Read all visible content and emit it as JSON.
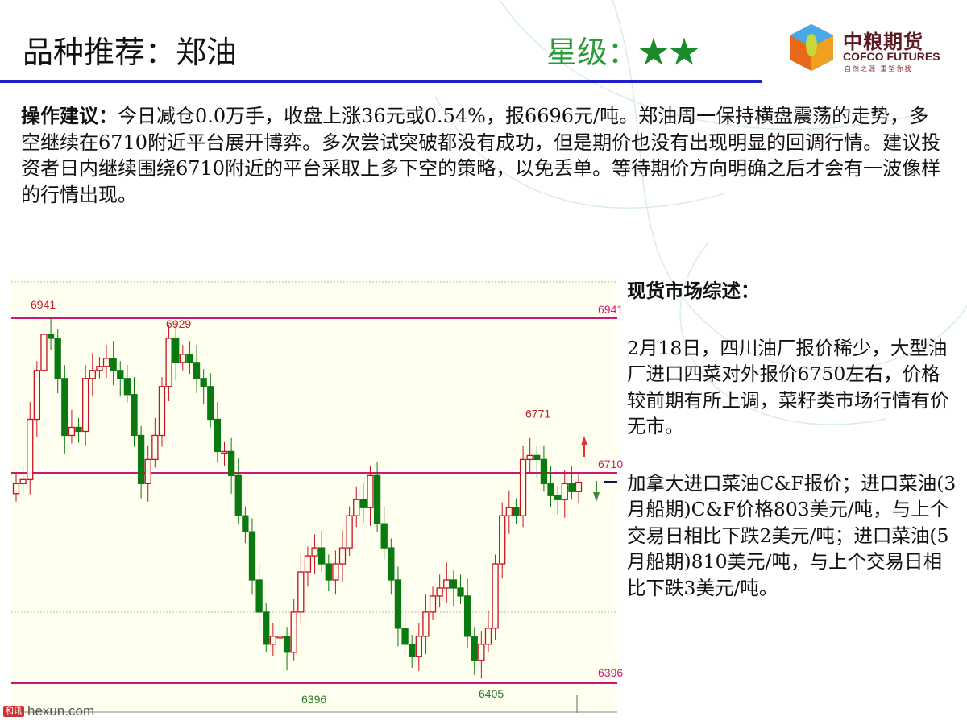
{
  "header": {
    "title": "品种推荐：郑油",
    "rating_label": "星级：",
    "rating_stars": "★★",
    "rating_value": 2
  },
  "logo": {
    "cn": "中粮期货",
    "en": "COFCO FUTURES",
    "tagline": "自然之源 重塑你我"
  },
  "advice": {
    "label": "操作建议：",
    "text": "今日减仓0.0万手，收盘上涨36元或0.54%，报6696元/吨。郑油周一保持横盘震荡的走势，多空继续在6710附近平台展开博弈。多次尝试突破都没有成功，但是期价也没有出现明显的回调行情。建议投资者日内继续围绕6710附近的平台采取上多下空的策略，以免丢单。等待期价方向明确之后才会有一波像样的行情出现。"
  },
  "side": {
    "heading": "现货市场综述：",
    "para1": "2月18日，四川油厂报价稀少，大型油厂进口四菜对外报价6750左右，价格较前期有所上调，菜籽类市场行情有价无市。",
    "para2": "加拿大进口菜油C&F报价；进口菜油(3月船期)C&F价格803美元/吨，与上个交易日相比下跌2美元/吨；进口菜油(5月船期)810美元/吨，与上个交易日相比下跌3美元/吨。"
  },
  "watermark": {
    "cn": "和讯",
    "en": "hexun.com"
  },
  "chart_data": {
    "type": "candlestick",
    "ylim": [
      6340,
      7000
    ],
    "closes": [
      6694,
      6700,
      6790,
      6863,
      6917,
      6911,
      6851,
      6766,
      6778,
      6772,
      6851,
      6863,
      6869,
      6881,
      6863,
      6851,
      6827,
      6766,
      6694,
      6730,
      6766,
      6839,
      6911,
      6875,
      6887,
      6875,
      6851,
      6839,
      6790,
      6742,
      6742,
      6706,
      6646,
      6622,
      6550,
      6502,
      6454,
      6466,
      6466,
      6442,
      6502,
      6562,
      6586,
      6598,
      6574,
      6550,
      6574,
      6598,
      6646,
      6670,
      6658,
      6706,
      6634,
      6598,
      6550,
      6478,
      6454,
      6436,
      6466,
      6502,
      6526,
      6538,
      6550,
      6538,
      6526,
      6466,
      6430,
      6454,
      6478,
      6574,
      6646,
      6658,
      6646,
      6730,
      6736,
      6730,
      6694,
      6676,
      6670,
      6694,
      6682,
      6696
    ],
    "hlines": [
      {
        "value": 6941,
        "label": "6941"
      },
      {
        "value": 6710,
        "label": "6710"
      },
      {
        "value": 6396,
        "label": "6396"
      }
    ],
    "annotations": [
      {
        "value": 6941,
        "label": "6941",
        "color": "#c0202a"
      },
      {
        "value": 6929,
        "label": "6929",
        "color": "#c0202a"
      },
      {
        "value": 6771,
        "label": "6771",
        "color": "#c0202a"
      },
      {
        "value": 6396,
        "label": "6396",
        "color": "#2a7a2a"
      },
      {
        "value": 6405,
        "label": "6405",
        "color": "#2a7a2a"
      }
    ],
    "colors": {
      "up": "#c8101e",
      "down": "#0a7a10",
      "hline": "#d0157a",
      "bg": "#fffff0"
    }
  }
}
